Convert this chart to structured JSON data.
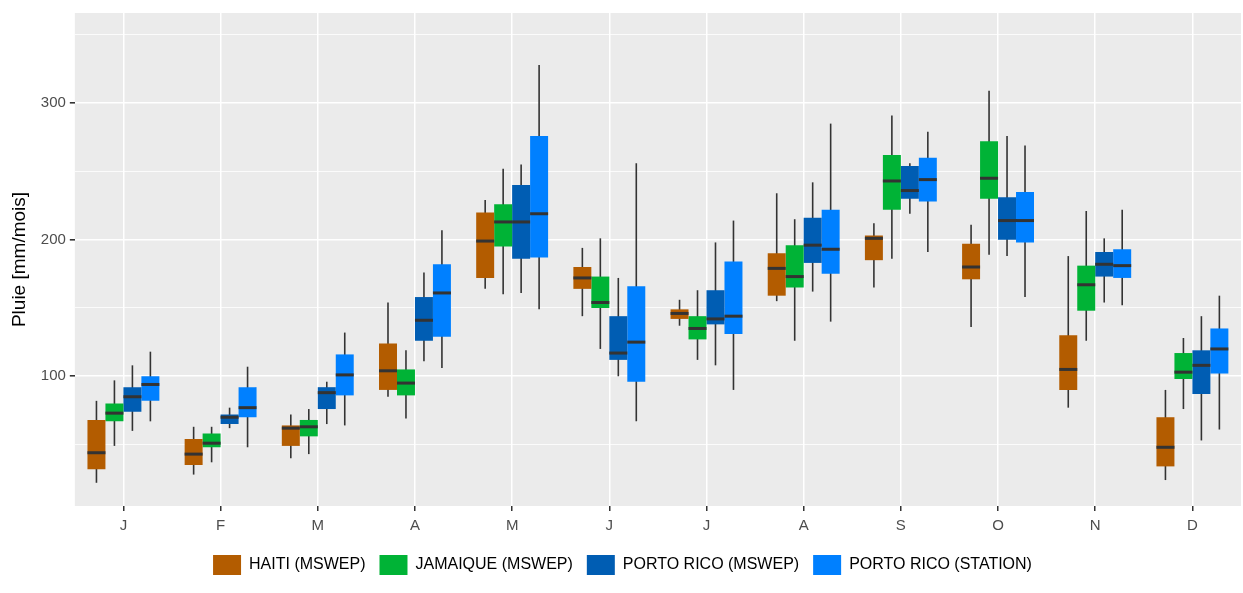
{
  "chart_data": {
    "type": "box",
    "ylabel": "Pluie [mm/mois]",
    "categories": [
      "J",
      "F",
      "M",
      "A",
      "M",
      "J",
      "J",
      "A",
      "S",
      "O",
      "N",
      "D"
    ],
    "ylim": [
      5,
      366
    ],
    "yticks": [
      {
        "value": 50,
        "label": null
      },
      100,
      {
        "value": 150,
        "label": null
      },
      200,
      {
        "value": 250,
        "label": null
      },
      300,
      {
        "value": 350,
        "label": null
      }
    ],
    "grid": true,
    "legend": "bottom",
    "series": [
      {
        "name": "HAITI (MSWEP)",
        "color": "#b35c00",
        "boxes": [
          {
            "low": 22,
            "q1": 32,
            "median": 44,
            "q3": 68,
            "high": 82
          },
          {
            "low": 28,
            "q1": 35,
            "median": 43,
            "q3": 54,
            "high": 63
          },
          {
            "low": 40,
            "q1": 49,
            "median": 62,
            "q3": 64,
            "high": 72
          },
          {
            "low": 85,
            "q1": 90,
            "median": 104,
            "q3": 124,
            "high": 154
          },
          {
            "low": 164,
            "q1": 172,
            "median": 199,
            "q3": 220,
            "high": 229
          },
          {
            "low": 144,
            "q1": 164,
            "median": 172,
            "q3": 180,
            "high": 194
          },
          {
            "low": 137,
            "q1": 142,
            "median": 146,
            "q3": 149,
            "high": 156
          },
          {
            "low": 155,
            "q1": 159,
            "median": 179,
            "q3": 190,
            "high": 234
          },
          {
            "low": 165,
            "q1": 185,
            "median": 201,
            "q3": 203,
            "high": 212
          },
          {
            "low": 136,
            "q1": 171,
            "median": 180,
            "q3": 197,
            "high": 211
          },
          {
            "low": 77,
            "q1": 90,
            "median": 105,
            "q3": 130,
            "high": 188
          },
          {
            "low": 24,
            "q1": 34,
            "median": 48,
            "q3": 70,
            "high": 90
          }
        ]
      },
      {
        "name": "JAMAIQUE (MSWEP)",
        "color": "#00b336",
        "boxes": [
          {
            "low": 49,
            "q1": 67,
            "median": 73,
            "q3": 80,
            "high": 97
          },
          {
            "low": 37,
            "q1": 48,
            "median": 51,
            "q3": 58,
            "high": 63
          },
          {
            "low": 43,
            "q1": 56,
            "median": 63,
            "q3": 68,
            "high": 76
          },
          {
            "low": 69,
            "q1": 86,
            "median": 95,
            "q3": 105,
            "high": 119
          },
          {
            "low": 160,
            "q1": 195,
            "median": 213,
            "q3": 226,
            "high": 252
          },
          {
            "low": 120,
            "q1": 150,
            "median": 154,
            "q3": 173,
            "high": 201
          },
          {
            "low": 112,
            "q1": 127,
            "median": 135,
            "q3": 144,
            "high": 163
          },
          {
            "low": 126,
            "q1": 165,
            "median": 173,
            "q3": 196,
            "high": 215
          },
          {
            "low": 186,
            "q1": 222,
            "median": 243,
            "q3": 262,
            "high": 291
          },
          {
            "low": 189,
            "q1": 230,
            "median": 245,
            "q3": 272,
            "high": 309
          },
          {
            "low": 126,
            "q1": 148,
            "median": 167,
            "q3": 181,
            "high": 221
          },
          {
            "low": 76,
            "q1": 98,
            "median": 103,
            "q3": 117,
            "high": 128
          }
        ]
      },
      {
        "name": "PORTO RICO (MSWEP)",
        "color": "#005db3",
        "boxes": [
          {
            "low": 60,
            "q1": 74,
            "median": 85,
            "q3": 92,
            "high": 108
          },
          {
            "low": 62,
            "q1": 65,
            "median": 70,
            "q3": 72,
            "high": 77
          },
          {
            "low": 65,
            "q1": 76,
            "median": 88,
            "q3": 92,
            "high": 96
          },
          {
            "low": 111,
            "q1": 126,
            "median": 141,
            "q3": 158,
            "high": 176
          },
          {
            "low": 161,
            "q1": 186,
            "median": 213,
            "q3": 240,
            "high": 255
          },
          {
            "low": 100,
            "q1": 112,
            "median": 117,
            "q3": 144,
            "high": 172
          },
          {
            "low": 108,
            "q1": 138,
            "median": 142,
            "q3": 163,
            "high": 198
          },
          {
            "low": 162,
            "q1": 183,
            "median": 196,
            "q3": 216,
            "high": 242
          },
          {
            "low": 219,
            "q1": 230,
            "median": 236,
            "q3": 254,
            "high": 256
          },
          {
            "low": 188,
            "q1": 200,
            "median": 214,
            "q3": 231,
            "high": 276
          },
          {
            "low": 154,
            "q1": 173,
            "median": 182,
            "q3": 191,
            "high": 201
          },
          {
            "low": 53,
            "q1": 87,
            "median": 108,
            "q3": 119,
            "high": 144
          }
        ]
      },
      {
        "name": "PORTO RICO (STATION)",
        "color": "#0080ff",
        "boxes": [
          {
            "low": 67,
            "q1": 82,
            "median": 94,
            "q3": 100,
            "high": 118
          },
          {
            "low": 48,
            "q1": 70,
            "median": 77,
            "q3": 92,
            "high": 107
          },
          {
            "low": 64,
            "q1": 86,
            "median": 101,
            "q3": 116,
            "high": 132
          },
          {
            "low": 106,
            "q1": 129,
            "median": 161,
            "q3": 182,
            "high": 207
          },
          {
            "low": 149,
            "q1": 187,
            "median": 219,
            "q3": 276,
            "high": 328
          },
          {
            "low": 67,
            "q1": 96,
            "median": 125,
            "q3": 166,
            "high": 256
          },
          {
            "low": 90,
            "q1": 131,
            "median": 144,
            "q3": 184,
            "high": 214
          },
          {
            "low": 140,
            "q1": 175,
            "median": 193,
            "q3": 222,
            "high": 285
          },
          {
            "low": 191,
            "q1": 228,
            "median": 244,
            "q3": 260,
            "high": 279
          },
          {
            "low": 158,
            "q1": 198,
            "median": 214,
            "q3": 235,
            "high": 269
          },
          {
            "low": 152,
            "q1": 172,
            "median": 181,
            "q3": 193,
            "high": 222
          },
          {
            "low": 61,
            "q1": 102,
            "median": 120,
            "q3": 135,
            "high": 159
          }
        ]
      }
    ]
  }
}
